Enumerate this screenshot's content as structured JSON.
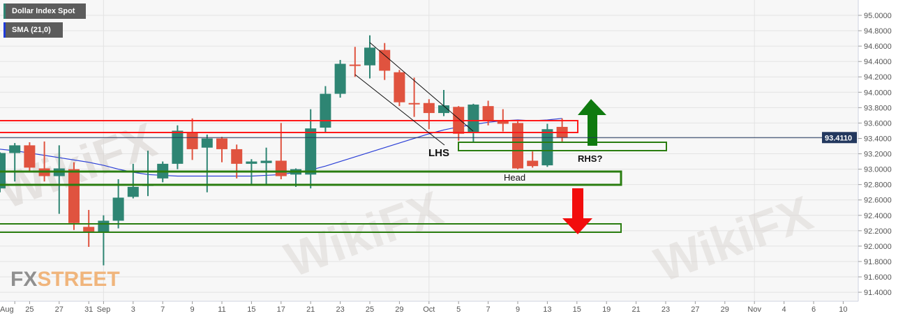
{
  "legend": {
    "instrument": "Dollar Index Spot",
    "indicator": "SMA (21,0)",
    "instrument_color": "#2e8573",
    "indicator_color": "#1f3bd9"
  },
  "watermarks": {
    "fxstreet_fx": "FX",
    "fxstreet_street": "STREET",
    "wikifx": "WikiFX"
  },
  "chart_data": {
    "type": "candlestick",
    "title": "",
    "ylim": [
      91.3,
      95.1
    ],
    "y_ticks": [
      "95.0000",
      "94.8000",
      "94.6000",
      "94.4000",
      "94.2000",
      "94.0000",
      "93.8000",
      "93.6000",
      "93.4000",
      "93.2000",
      "93.0000",
      "92.8000",
      "92.6000",
      "92.4000",
      "92.2000",
      "92.0000",
      "91.8000",
      "91.6000",
      "91.4000"
    ],
    "last_price": "93.4110",
    "grid": true,
    "colors": {
      "up": "#2e8573",
      "down": "#e0533f",
      "sma": "#2b3fd6",
      "price_line": "#23385e"
    },
    "x_ticks": [
      {
        "date": "2020-08-24",
        "label": "Aug"
      },
      {
        "date": "2020-08-25",
        "label": "25"
      },
      {
        "date": "2020-08-27",
        "label": "27"
      },
      {
        "date": "2020-08-31",
        "label": "31"
      },
      {
        "date": "2020-09-01",
        "label": "Sep"
      },
      {
        "date": "2020-09-03",
        "label": "3"
      },
      {
        "date": "2020-09-07",
        "label": "7"
      },
      {
        "date": "2020-09-09",
        "label": "9"
      },
      {
        "date": "2020-09-11",
        "label": "11"
      },
      {
        "date": "2020-09-15",
        "label": "15"
      },
      {
        "date": "2020-09-17",
        "label": "17"
      },
      {
        "date": "2020-09-21",
        "label": "21"
      },
      {
        "date": "2020-09-23",
        "label": "23"
      },
      {
        "date": "2020-09-25",
        "label": "25"
      },
      {
        "date": "2020-09-29",
        "label": "29"
      },
      {
        "date": "2020-10-01",
        "label": "Oct"
      },
      {
        "date": "2020-10-05",
        "label": "5"
      },
      {
        "date": "2020-10-07",
        "label": "7"
      },
      {
        "date": "2020-10-09",
        "label": "9"
      },
      {
        "date": "2020-10-13",
        "label": "13"
      },
      {
        "date": "2020-10-15",
        "label": "15"
      },
      {
        "date": "2020-10-19",
        "label": "19"
      },
      {
        "date": "2020-10-21",
        "label": "21"
      },
      {
        "date": "2020-10-23",
        "label": "23"
      },
      {
        "date": "2020-10-27",
        "label": "27"
      },
      {
        "date": "2020-10-29",
        "label": "29"
      },
      {
        "date": "2020-11-02",
        "label": "Nov"
      },
      {
        "date": "2020-11-04",
        "label": "4"
      },
      {
        "date": "2020-11-06",
        "label": "6"
      },
      {
        "date": "2020-11-10",
        "label": "10"
      }
    ],
    "candles": [
      {
        "date": "2020-08-21",
        "o": 92.75,
        "h": 93.22,
        "l": 92.7,
        "c": 93.21
      },
      {
        "date": "2020-08-24",
        "o": 93.21,
        "h": 93.34,
        "l": 92.84,
        "c": 93.31
      },
      {
        "date": "2020-08-25",
        "o": 93.31,
        "h": 93.35,
        "l": 92.98,
        "c": 93.02
      },
      {
        "date": "2020-08-26",
        "o": 93.01,
        "h": 93.36,
        "l": 92.84,
        "c": 92.91
      },
      {
        "date": "2020-08-27",
        "o": 92.91,
        "h": 93.31,
        "l": 92.42,
        "c": 93.01
      },
      {
        "date": "2020-08-28",
        "o": 93.0,
        "h": 93.09,
        "l": 92.21,
        "c": 92.3
      },
      {
        "date": "2020-08-31",
        "o": 92.25,
        "h": 92.47,
        "l": 91.99,
        "c": 92.19
      },
      {
        "date": "2020-09-01",
        "o": 92.18,
        "h": 92.4,
        "l": 91.75,
        "c": 92.33
      },
      {
        "date": "2020-09-02",
        "o": 92.33,
        "h": 92.87,
        "l": 92.23,
        "c": 92.63
      },
      {
        "date": "2020-09-03",
        "o": 92.64,
        "h": 93.07,
        "l": 92.62,
        "c": 92.77
      },
      {
        "date": "2020-09-04",
        "o": 92.79,
        "h": 93.24,
        "l": 92.65,
        "c": 92.8
      },
      {
        "date": "2020-09-07",
        "o": 92.88,
        "h": 93.1,
        "l": 92.83,
        "c": 93.07
      },
      {
        "date": "2020-09-08",
        "o": 93.07,
        "h": 93.57,
        "l": 93.0,
        "c": 93.5
      },
      {
        "date": "2020-09-09",
        "o": 93.48,
        "h": 93.66,
        "l": 93.12,
        "c": 93.26
      },
      {
        "date": "2020-09-10",
        "o": 93.28,
        "h": 93.45,
        "l": 92.7,
        "c": 93.4
      },
      {
        "date": "2020-09-11",
        "o": 93.4,
        "h": 93.42,
        "l": 93.09,
        "c": 93.26
      },
      {
        "date": "2020-09-14",
        "o": 93.26,
        "h": 93.32,
        "l": 92.88,
        "c": 93.07
      },
      {
        "date": "2020-09-15",
        "o": 93.07,
        "h": 93.13,
        "l": 92.8,
        "c": 93.1
      },
      {
        "date": "2020-09-16",
        "o": 93.08,
        "h": 93.28,
        "l": 92.8,
        "c": 93.11
      },
      {
        "date": "2020-09-17",
        "o": 93.11,
        "h": 93.6,
        "l": 92.87,
        "c": 92.91
      },
      {
        "date": "2020-09-18",
        "o": 92.93,
        "h": 93.01,
        "l": 92.77,
        "c": 93.0
      },
      {
        "date": "2020-09-21",
        "o": 92.93,
        "h": 93.78,
        "l": 92.75,
        "c": 93.53
      },
      {
        "date": "2020-09-22",
        "o": 93.54,
        "h": 94.08,
        "l": 93.48,
        "c": 93.98
      },
      {
        "date": "2020-09-23",
        "o": 93.98,
        "h": 94.42,
        "l": 93.93,
        "c": 94.37
      },
      {
        "date": "2020-09-24",
        "o": 94.36,
        "h": 94.59,
        "l": 94.2,
        "c": 94.35
      },
      {
        "date": "2020-09-25",
        "o": 94.35,
        "h": 94.74,
        "l": 94.18,
        "c": 94.58
      },
      {
        "date": "2020-09-28",
        "o": 94.55,
        "h": 94.64,
        "l": 94.16,
        "c": 94.28
      },
      {
        "date": "2020-09-29",
        "o": 94.26,
        "h": 94.29,
        "l": 93.82,
        "c": 93.87
      },
      {
        "date": "2020-09-30",
        "o": 93.86,
        "h": 94.19,
        "l": 93.68,
        "c": 93.85
      },
      {
        "date": "2020-10-01",
        "o": 93.86,
        "h": 93.91,
        "l": 93.52,
        "c": 93.73
      },
      {
        "date": "2020-10-02",
        "o": 93.73,
        "h": 94.03,
        "l": 93.69,
        "c": 93.83
      },
      {
        "date": "2020-10-05",
        "o": 93.81,
        "h": 93.82,
        "l": 93.37,
        "c": 93.46
      },
      {
        "date": "2020-10-06",
        "o": 93.48,
        "h": 93.85,
        "l": 93.35,
        "c": 93.84
      },
      {
        "date": "2020-10-07",
        "o": 93.82,
        "h": 93.89,
        "l": 93.57,
        "c": 93.64
      },
      {
        "date": "2020-10-08",
        "o": 93.64,
        "h": 93.78,
        "l": 93.49,
        "c": 93.59
      },
      {
        "date": "2020-10-09",
        "o": 93.6,
        "h": 93.62,
        "l": 93.0,
        "c": 93.01
      },
      {
        "date": "2020-10-12",
        "o": 93.11,
        "h": 93.23,
        "l": 93.02,
        "c": 93.04
      },
      {
        "date": "2020-10-13",
        "o": 93.05,
        "h": 93.59,
        "l": 93.03,
        "c": 93.52
      },
      {
        "date": "2020-10-14",
        "o": 93.55,
        "h": 93.66,
        "l": 93.36,
        "c": 93.41
      }
    ],
    "sma_21": [
      93.26,
      93.24,
      93.21,
      93.18,
      93.15,
      93.12,
      93.09,
      93.05,
      93.0,
      92.96,
      92.93,
      92.92,
      92.91,
      92.91,
      92.91,
      92.91,
      92.91,
      92.91,
      92.92,
      92.93,
      92.96,
      92.99,
      93.04,
      93.1,
      93.16,
      93.22,
      93.28,
      93.34,
      93.4,
      93.46,
      93.51,
      93.55,
      93.58,
      93.61,
      93.63,
      93.64,
      93.63,
      93.64,
      93.66
    ],
    "annotations": {
      "lhs": "LHS",
      "head": "Head",
      "rhs": "RHS?"
    }
  }
}
